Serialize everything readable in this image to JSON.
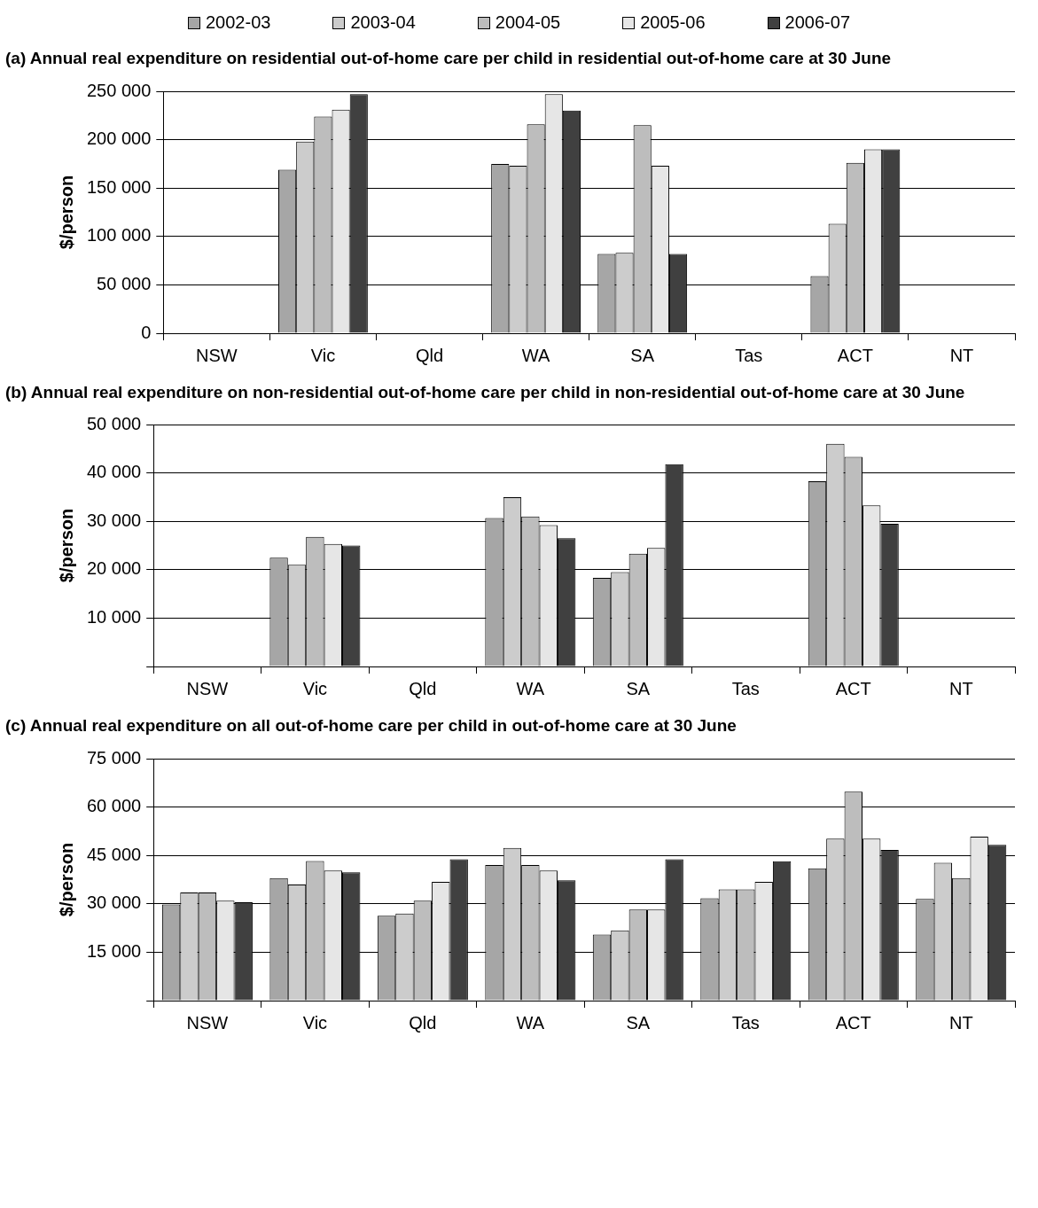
{
  "chart_data": [
    {
      "type": "bar",
      "title": "(a) Annual real expenditure on residential out-of-home care per child in residential out-of-home care at 30 June",
      "ylabel": "$/person",
      "categories": [
        "NSW",
        "Vic",
        "Qld",
        "WA",
        "SA",
        "Tas",
        "ACT",
        "NT"
      ],
      "ylim": [
        0,
        250000
      ],
      "yticks": [
        0,
        50000,
        100000,
        150000,
        200000,
        250000
      ],
      "grid": "y",
      "legend": "top",
      "series": [
        {
          "name": "2002-03",
          "color": "#a6a6a6",
          "values": [
            null,
            169000,
            null,
            175000,
            82000,
            null,
            59000,
            null
          ]
        },
        {
          "name": "2003-04",
          "color": "#cccccc",
          "values": [
            null,
            198000,
            null,
            173000,
            83000,
            null,
            113000,
            null
          ]
        },
        {
          "name": "2004-05",
          "color": "#bdbdbd",
          "values": [
            null,
            224000,
            null,
            216000,
            215000,
            null,
            176000,
            null
          ]
        },
        {
          "name": "2005-06",
          "color": "#e6e6e6",
          "values": [
            null,
            231000,
            null,
            247000,
            173000,
            null,
            190000,
            null
          ]
        },
        {
          "name": "2006-07",
          "color": "#404040",
          "values": [
            null,
            247000,
            null,
            230000,
            82000,
            null,
            190000,
            null
          ]
        }
      ]
    },
    {
      "type": "bar",
      "title": "(b) Annual real expenditure on non-residential out-of-home care per child in non-residential out-of-home care at 30 June",
      "ylabel": "$/person",
      "categories": [
        "NSW",
        "Vic",
        "Qld",
        "WA",
        "SA",
        "Tas",
        "ACT",
        "NT"
      ],
      "ylim": [
        0,
        50000
      ],
      "yticks": [
        {
          "value": 0,
          "label": null
        },
        10000,
        20000,
        30000,
        40000,
        50000
      ],
      "grid": "y",
      "series": [
        {
          "color": "#a6a6a6",
          "values": [
            null,
            22500,
            null,
            30700,
            18300,
            null,
            38300,
            null
          ]
        },
        {
          "color": "#cccccc",
          "values": [
            null,
            21000,
            null,
            35000,
            19500,
            null,
            46000,
            null
          ]
        },
        {
          "color": "#bdbdbd",
          "values": [
            null,
            26800,
            null,
            31000,
            23300,
            null,
            43300,
            null
          ]
        },
        {
          "color": "#e6e6e6",
          "values": [
            null,
            25300,
            null,
            29200,
            24500,
            null,
            33300,
            null
          ]
        },
        {
          "color": "#404040",
          "values": [
            null,
            25000,
            null,
            26500,
            41800,
            null,
            29500,
            null
          ]
        }
      ]
    },
    {
      "type": "bar",
      "title": "(c) Annual real expenditure on all out-of-home care per child in out-of-home care at 30 June",
      "ylabel": "$/person",
      "categories": [
        "NSW",
        "Vic",
        "Qld",
        "WA",
        "SA",
        "Tas",
        "ACT",
        "NT"
      ],
      "ylim": [
        0,
        75000
      ],
      "yticks": [
        {
          "value": 0,
          "label": null
        },
        15000,
        30000,
        45000,
        60000,
        75000
      ],
      "grid": "y",
      "series": [
        {
          "color": "#a6a6a6",
          "values": [
            29800,
            38000,
            26300,
            42000,
            20500,
            31700,
            41000,
            31500
          ]
        },
        {
          "color": "#cccccc",
          "values": [
            33500,
            36000,
            27000,
            47300,
            21800,
            34500,
            50200,
            42700
          ]
        },
        {
          "color": "#bdbdbd",
          "values": [
            33500,
            43300,
            31000,
            42000,
            28200,
            34500,
            64800,
            38000
          ]
        },
        {
          "color": "#e6e6e6",
          "values": [
            31000,
            40300,
            36800,
            40300,
            28200,
            36800,
            50200,
            50800
          ]
        },
        {
          "color": "#404040",
          "values": [
            30500,
            39800,
            43800,
            37300,
            43800,
            43200,
            46700,
            48300
          ]
        }
      ]
    }
  ]
}
